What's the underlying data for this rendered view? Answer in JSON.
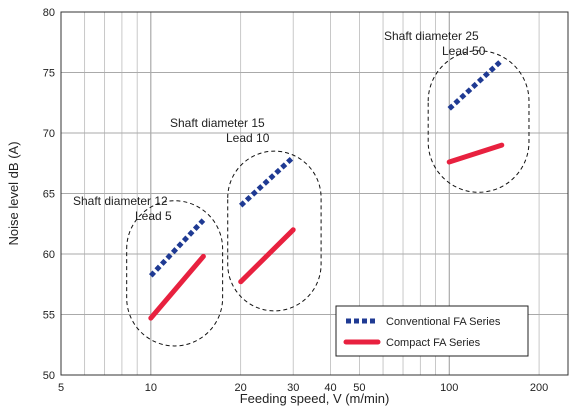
{
  "chart_data": {
    "type": "line",
    "xlabel": "Feeding speed, V (m/min)",
    "ylabel": "Noise level dB (A)",
    "x_scale": "log",
    "xlim": [
      5,
      250
    ],
    "ylim": [
      50,
      80
    ],
    "x_ticks": [
      5,
      10,
      20,
      30,
      40,
      50,
      100,
      200
    ],
    "y_ticks": [
      50,
      55,
      60,
      65,
      70,
      75,
      80
    ],
    "grid": true,
    "legend_position": "bottom-right",
    "series": [
      {
        "name": "Conventional FA Series",
        "style": "dotted",
        "color": "#1f3a93",
        "segments": [
          [
            [
              10,
              58.2
            ],
            [
              15,
              62.8
            ]
          ],
          [
            [
              20,
              64.0
            ],
            [
              30,
              68.0
            ]
          ],
          [
            [
              100,
              72.0
            ],
            [
              150,
              76.0
            ]
          ]
        ]
      },
      {
        "name": "Compact FA Series",
        "style": "solid",
        "color": "#e8213f",
        "segments": [
          [
            [
              10,
              54.7
            ],
            [
              15,
              59.8
            ]
          ],
          [
            [
              20,
              57.7
            ],
            [
              30,
              62.0
            ]
          ],
          [
            [
              100,
              67.6
            ],
            [
              150,
              69.0
            ]
          ]
        ]
      }
    ],
    "groups": [
      {
        "label_line1": "Shaft diameter 12",
        "label_line2": "Lead 5"
      },
      {
        "label_line1": "Shaft diameter 15",
        "label_line2": "Lead 10"
      },
      {
        "label_line1": "Shaft diameter 25",
        "label_line2": "Lead 50"
      }
    ]
  }
}
